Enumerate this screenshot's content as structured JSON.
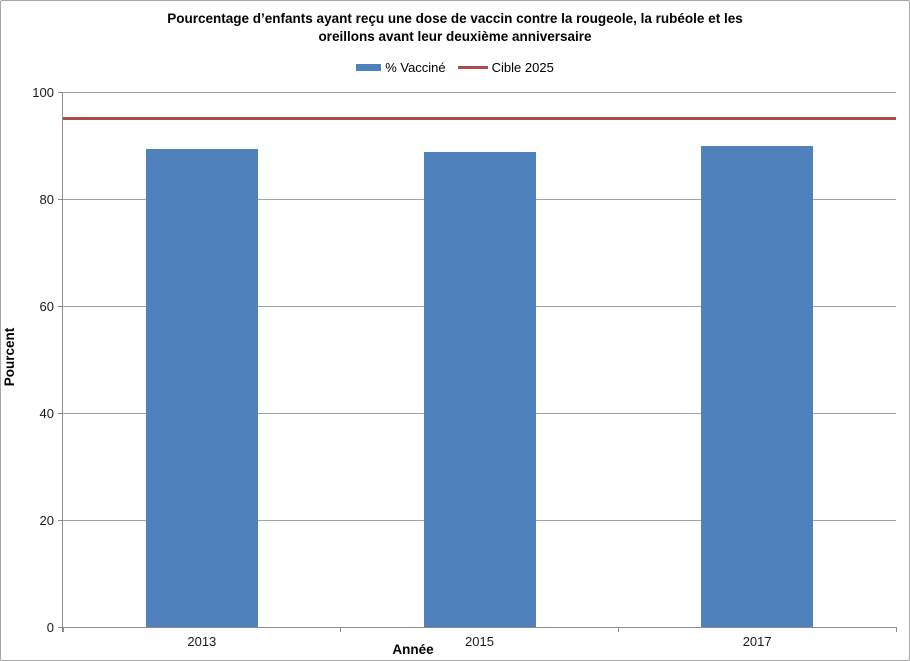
{
  "chart_data": {
    "type": "bar",
    "title": "Pourcentage d’enfants ayant reçu une dose de vaccin contre la rougeole, la rubéole et les oreillons avant leur deuxième anniversaire",
    "title_lines": [
      "Pourcentage d’enfants ayant reçu une dose de vaccin contre la rougeole, la rubéole et les",
      "oreillons avant leur deuxième anniversaire"
    ],
    "categories": [
      "2013",
      "2015",
      "2017"
    ],
    "series": [
      {
        "name": "% Vacciné",
        "kind": "bar",
        "values": [
          89.3,
          88.8,
          89.9
        ],
        "color": "#4f81bd"
      },
      {
        "name": "Cible 2025",
        "kind": "line",
        "values": [
          95,
          95,
          95
        ],
        "color": "#b04c48"
      }
    ],
    "xlabel": "Année",
    "ylabel": "Pourcent",
    "ylim": [
      0,
      100
    ],
    "yticks": [
      0,
      20,
      40,
      60,
      80,
      100
    ],
    "grid": true,
    "legend_position": "top",
    "colors": {
      "bar": "#4f81bd",
      "target_line": "#b04c48",
      "gridline": "#a3a3a3",
      "axis": "#8c8c8c",
      "frame_border": "#a6a6a6",
      "background": "#ffffff"
    }
  }
}
